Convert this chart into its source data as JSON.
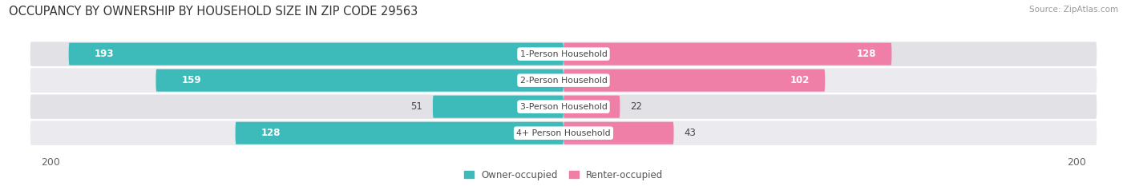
{
  "title": "OCCUPANCY BY OWNERSHIP BY HOUSEHOLD SIZE IN ZIP CODE 29563",
  "source": "Source: ZipAtlas.com",
  "categories": [
    "1-Person Household",
    "2-Person Household",
    "3-Person Household",
    "4+ Person Household"
  ],
  "owner_values": [
    193,
    159,
    51,
    128
  ],
  "renter_values": [
    128,
    102,
    22,
    43
  ],
  "owner_color": "#3DBBBB",
  "renter_color": "#F07FA8",
  "row_bg_colors_dark": "#E2E2E6",
  "row_bg_colors_light": "#EBEBEF",
  "max_val": 200,
  "legend_owner": "Owner-occupied",
  "legend_renter": "Renter-occupied",
  "title_fontsize": 10.5,
  "tick_fontsize": 9,
  "background_color": "#FFFFFF"
}
